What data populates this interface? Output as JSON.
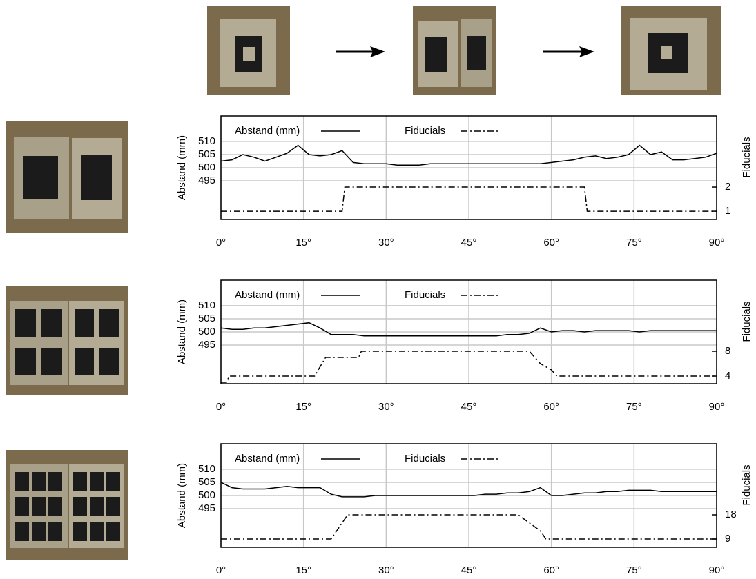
{
  "chart_data": [
    {
      "type": "line",
      "xlim": [
        0,
        90
      ],
      "xticks": [
        {
          "value": 0,
          "label": "0°"
        },
        {
          "value": 15,
          "label": "15°"
        },
        {
          "value": 30,
          "label": "30°"
        },
        {
          "value": 45,
          "label": "45°"
        },
        {
          "value": 60,
          "label": "60°"
        },
        {
          "value": 75,
          "label": "75°"
        },
        {
          "value": 90,
          "label": "90°"
        }
      ],
      "ylim": [
        480.3,
        519.7
      ],
      "yticks": [
        495,
        500,
        505,
        510
      ],
      "y_label": "Abstand (mm)",
      "y2lim": [
        0.66,
        4.94
      ],
      "y2ticks": [
        1,
        2
      ],
      "y2_label": "Fiducials",
      "grid": true,
      "series": [
        {
          "name": "Abstand (mm)",
          "color": "#000000",
          "dash": "solid",
          "x": [
            0,
            2,
            4,
            6,
            8,
            10,
            12,
            14,
            16,
            18,
            20,
            22,
            24,
            26,
            28,
            30,
            32,
            34,
            36,
            38,
            40,
            42,
            44,
            46,
            48,
            50,
            52,
            54,
            56,
            58,
            60,
            62,
            64,
            66,
            68,
            70,
            72,
            74,
            76,
            78,
            80,
            82,
            84,
            86,
            88,
            90
          ],
          "values": [
            502.5,
            503,
            505,
            504,
            502.5,
            504,
            505.5,
            508.5,
            505,
            504.5,
            505,
            506.5,
            502,
            501.5,
            501.5,
            501.5,
            501,
            501,
            501,
            501.5,
            501.5,
            501.5,
            501.5,
            501.5,
            501.5,
            501.5,
            501.5,
            501.5,
            501.5,
            501.5,
            502,
            502.5,
            503,
            504,
            504.5,
            503.5,
            504,
            505,
            508.5,
            505,
            506,
            503,
            503,
            503.5,
            504,
            505.5
          ]
        },
        {
          "name": "Fiducials",
          "color": "#000000",
          "dash": "dashdot",
          "axis": "y2",
          "x": [
            0,
            22,
            22.5,
            66,
            66.5,
            90
          ],
          "values": [
            1,
            1,
            2,
            2,
            1,
            1
          ]
        }
      ]
    },
    {
      "type": "line",
      "xlim": [
        0,
        90
      ],
      "xticks": [
        {
          "value": 0,
          "label": "0°"
        },
        {
          "value": 15,
          "label": "15°"
        },
        {
          "value": 30,
          "label": "30°"
        },
        {
          "value": 45,
          "label": "45°"
        },
        {
          "value": 60,
          "label": "60°"
        },
        {
          "value": 75,
          "label": "75°"
        },
        {
          "value": 90,
          "label": "90°"
        }
      ],
      "ylim": [
        480.3,
        519.7
      ],
      "yticks": [
        495,
        500,
        505,
        510
      ],
      "y_label": "Abstand (mm)",
      "y2lim": [
        2.78,
        19.44
      ],
      "y2ticks": [
        4,
        8
      ],
      "y2_label": "Fiducials",
      "grid": true,
      "series": [
        {
          "name": "Abstand (mm)",
          "color": "#000000",
          "dash": "solid",
          "x": [
            0,
            2,
            4,
            6,
            8,
            10,
            12,
            14,
            16,
            18,
            20,
            22,
            24,
            26,
            28,
            30,
            32,
            34,
            36,
            38,
            40,
            42,
            44,
            46,
            48,
            50,
            52,
            54,
            56,
            58,
            60,
            62,
            64,
            66,
            68,
            70,
            72,
            74,
            76,
            78,
            80,
            82,
            84,
            86,
            88,
            90
          ],
          "values": [
            501.5,
            501,
            501,
            501.5,
            501.5,
            502,
            502.5,
            503,
            503.5,
            501.5,
            499,
            499,
            499,
            498.5,
            498.5,
            498.5,
            498.5,
            498.5,
            498.5,
            498.5,
            498.5,
            498.5,
            498.5,
            498.5,
            498.5,
            498.5,
            499,
            499,
            499.5,
            501.5,
            500,
            500.5,
            500.5,
            500,
            500.5,
            500.5,
            500.5,
            500.5,
            500,
            500.5,
            500.5,
            500.5,
            500.5,
            500.5,
            500.5,
            500.5
          ]
        },
        {
          "name": "Fiducials",
          "color": "#000000",
          "dash": "dashdot",
          "axis": "y2",
          "x": [
            0,
            1,
            1.5,
            17,
            19,
            25,
            25.5,
            56,
            58,
            60,
            61,
            90
          ],
          "values": [
            3,
            3,
            4,
            4,
            7,
            7,
            8,
            8,
            6,
            5,
            4,
            4
          ]
        }
      ]
    },
    {
      "type": "line",
      "xlim": [
        0,
        90
      ],
      "xticks": [
        {
          "value": 0,
          "label": "0°"
        },
        {
          "value": 15,
          "label": "15°"
        },
        {
          "value": 30,
          "label": "30°"
        },
        {
          "value": 45,
          "label": "45°"
        },
        {
          "value": 60,
          "label": "60°"
        },
        {
          "value": 75,
          "label": "75°"
        },
        {
          "value": 90,
          "label": "90°"
        }
      ],
      "ylim": [
        480.3,
        519.7
      ],
      "yticks": [
        495,
        500,
        505,
        510
      ],
      "y_label": "Abstand (mm)",
      "y2lim": [
        5.91,
        44.5
      ],
      "y2ticks": [
        9,
        18
      ],
      "y2_label": "Fiducials",
      "grid": true,
      "series": [
        {
          "name": "Abstand (mm)",
          "color": "#000000",
          "dash": "solid",
          "x": [
            0,
            2,
            4,
            6,
            8,
            10,
            12,
            14,
            16,
            18,
            20,
            22,
            24,
            26,
            28,
            30,
            32,
            34,
            36,
            38,
            40,
            42,
            44,
            46,
            48,
            50,
            52,
            54,
            56,
            58,
            60,
            62,
            64,
            66,
            68,
            70,
            72,
            74,
            76,
            78,
            80,
            82,
            84,
            86,
            88,
            90
          ],
          "values": [
            505,
            503,
            502.5,
            502.5,
            502.5,
            503,
            503.5,
            503,
            503,
            503,
            500.5,
            499.5,
            499.5,
            499.5,
            500,
            500,
            500,
            500,
            500,
            500,
            500,
            500,
            500,
            500,
            500.5,
            500.5,
            501,
            501,
            501.5,
            503,
            500,
            500,
            500.5,
            501,
            501,
            501.5,
            501.5,
            502,
            502,
            502,
            501.5,
            501.5,
            501.5,
            501.5,
            501.5,
            501.5
          ]
        },
        {
          "name": "Fiducials",
          "color": "#000000",
          "dash": "dashdot",
          "axis": "y2",
          "x": [
            0,
            20,
            22,
            23,
            54,
            56,
            58,
            59,
            90
          ],
          "values": [
            9,
            9,
            15,
            18,
            18,
            15,
            12,
            9,
            9
          ]
        }
      ]
    }
  ]
}
